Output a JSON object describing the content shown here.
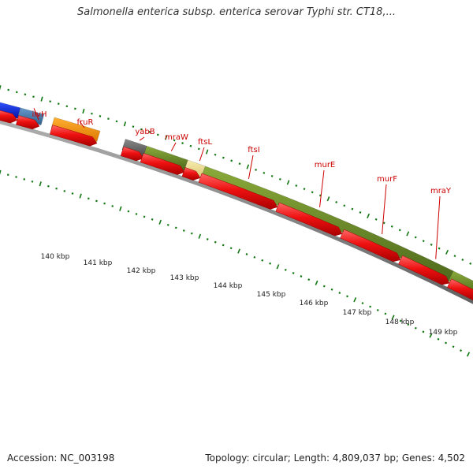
{
  "title": "Salmonella enterica subsp. enterica serovar Typhi str. CT18,...",
  "footer": {
    "accession": "Accession: NC_003198",
    "summary": "Topology: circular; Length: 4,809,037 bp; Genes: 4,502"
  },
  "gene_labels": [
    {
      "name": "ilvH"
    },
    {
      "name": "fruR"
    },
    {
      "name": "yabB"
    },
    {
      "name": "mraW"
    },
    {
      "name": "ftsL"
    },
    {
      "name": "ftsI"
    },
    {
      "name": "murE"
    },
    {
      "name": "murF"
    },
    {
      "name": "mraY"
    }
  ],
  "scale_labels": [
    "140 kbp",
    "141 kbp",
    "142 kbp",
    "143 kbp",
    "144 kbp",
    "145 kbp",
    "146 kbp",
    "147 kbp",
    "148 kbp",
    "149 kbp"
  ],
  "colors": {
    "cds": "#ee1111",
    "cds_top": "#ff5555",
    "gene_label": "#cc0000",
    "leader_line": "#cc0000",
    "tick_green": "#117711",
    "backbone": "#888888",
    "olive": "#6b8c2a",
    "grey_feature": "#666666",
    "pale_feature": "#eedd99",
    "orange_feature": "#ff9900",
    "blue_feature": "#1133dd",
    "steel_feature": "#4477aa"
  }
}
